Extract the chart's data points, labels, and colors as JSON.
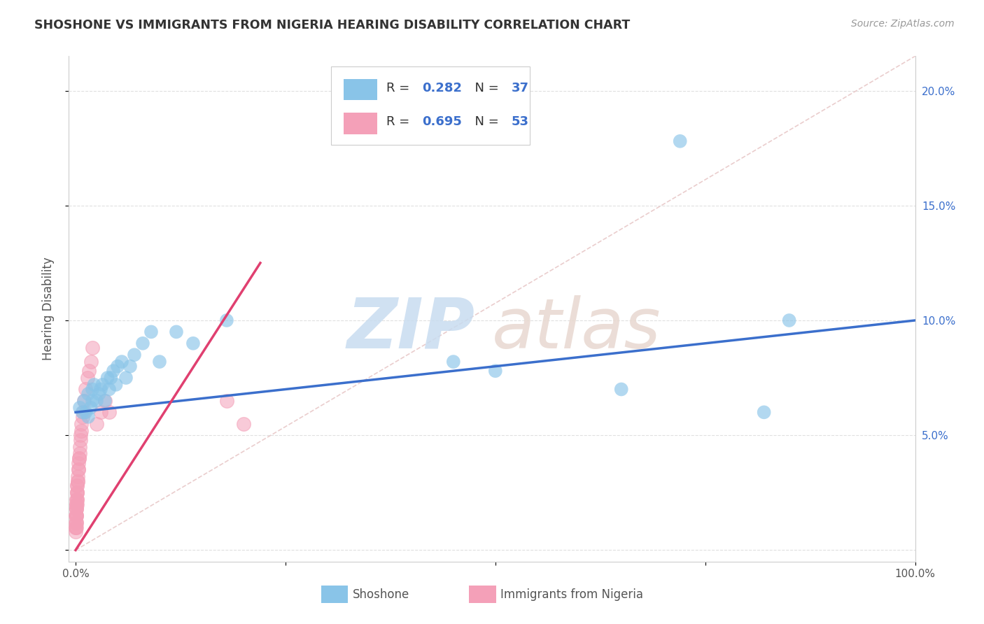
{
  "title": "SHOSHONE VS IMMIGRANTS FROM NIGERIA HEARING DISABILITY CORRELATION CHART",
  "source": "Source: ZipAtlas.com",
  "ylabel": "Hearing Disability",
  "xlim": [
    0.0,
    1.0
  ],
  "ylim": [
    -0.005,
    0.215
  ],
  "shoshone_color": "#89C4E8",
  "nigeria_color": "#F4A0B8",
  "shoshone_R": 0.282,
  "shoshone_N": 37,
  "nigeria_R": 0.695,
  "nigeria_N": 53,
  "blue_line_color": "#3B6FCC",
  "pink_line_color": "#E04070",
  "diag_line_color": "#E8C8C8",
  "watermark_zip_color": "#C8DCF0",
  "watermark_atlas_color": "#E8D8D0",
  "shoshone_x": [
    0.005,
    0.008,
    0.01,
    0.012,
    0.015,
    0.015,
    0.018,
    0.02,
    0.02,
    0.022,
    0.025,
    0.028,
    0.03,
    0.032,
    0.035,
    0.038,
    0.04,
    0.042,
    0.045,
    0.048,
    0.05,
    0.055,
    0.06,
    0.065,
    0.07,
    0.08,
    0.09,
    0.1,
    0.12,
    0.14,
    0.18,
    0.45,
    0.5,
    0.65,
    0.72,
    0.82,
    0.85
  ],
  "shoshone_y": [
    0.062,
    0.06,
    0.065,
    0.06,
    0.058,
    0.068,
    0.062,
    0.07,
    0.065,
    0.072,
    0.065,
    0.068,
    0.07,
    0.072,
    0.065,
    0.075,
    0.07,
    0.075,
    0.078,
    0.072,
    0.08,
    0.082,
    0.075,
    0.08,
    0.085,
    0.09,
    0.095,
    0.082,
    0.095,
    0.09,
    0.1,
    0.082,
    0.078,
    0.07,
    0.178,
    0.06,
    0.1
  ],
  "nigeria_x": [
    0.0002,
    0.0003,
    0.0003,
    0.0004,
    0.0004,
    0.0005,
    0.0005,
    0.0006,
    0.0006,
    0.0007,
    0.0008,
    0.0008,
    0.0009,
    0.001,
    0.001,
    0.0011,
    0.0012,
    0.0013,
    0.0014,
    0.0015,
    0.0016,
    0.0017,
    0.0018,
    0.0019,
    0.002,
    0.0022,
    0.0025,
    0.0028,
    0.003,
    0.0033,
    0.0036,
    0.004,
    0.0043,
    0.0046,
    0.005,
    0.0055,
    0.006,
    0.0065,
    0.007,
    0.008,
    0.009,
    0.01,
    0.012,
    0.014,
    0.016,
    0.018,
    0.02,
    0.025,
    0.03,
    0.035,
    0.04,
    0.18,
    0.2
  ],
  "nigeria_y": [
    0.01,
    0.012,
    0.008,
    0.015,
    0.01,
    0.012,
    0.018,
    0.01,
    0.015,
    0.012,
    0.015,
    0.02,
    0.015,
    0.018,
    0.022,
    0.018,
    0.02,
    0.022,
    0.02,
    0.025,
    0.022,
    0.025,
    0.028,
    0.025,
    0.028,
    0.03,
    0.03,
    0.032,
    0.035,
    0.038,
    0.035,
    0.04,
    0.04,
    0.042,
    0.045,
    0.048,
    0.05,
    0.052,
    0.055,
    0.058,
    0.06,
    0.065,
    0.07,
    0.075,
    0.078,
    0.082,
    0.088,
    0.055,
    0.06,
    0.065,
    0.06,
    0.065,
    0.055
  ],
  "blue_line_x": [
    0.0,
    1.0
  ],
  "blue_line_y": [
    0.06,
    0.1
  ],
  "pink_line_x": [
    0.0,
    0.22
  ],
  "pink_line_y": [
    0.0,
    0.125
  ]
}
